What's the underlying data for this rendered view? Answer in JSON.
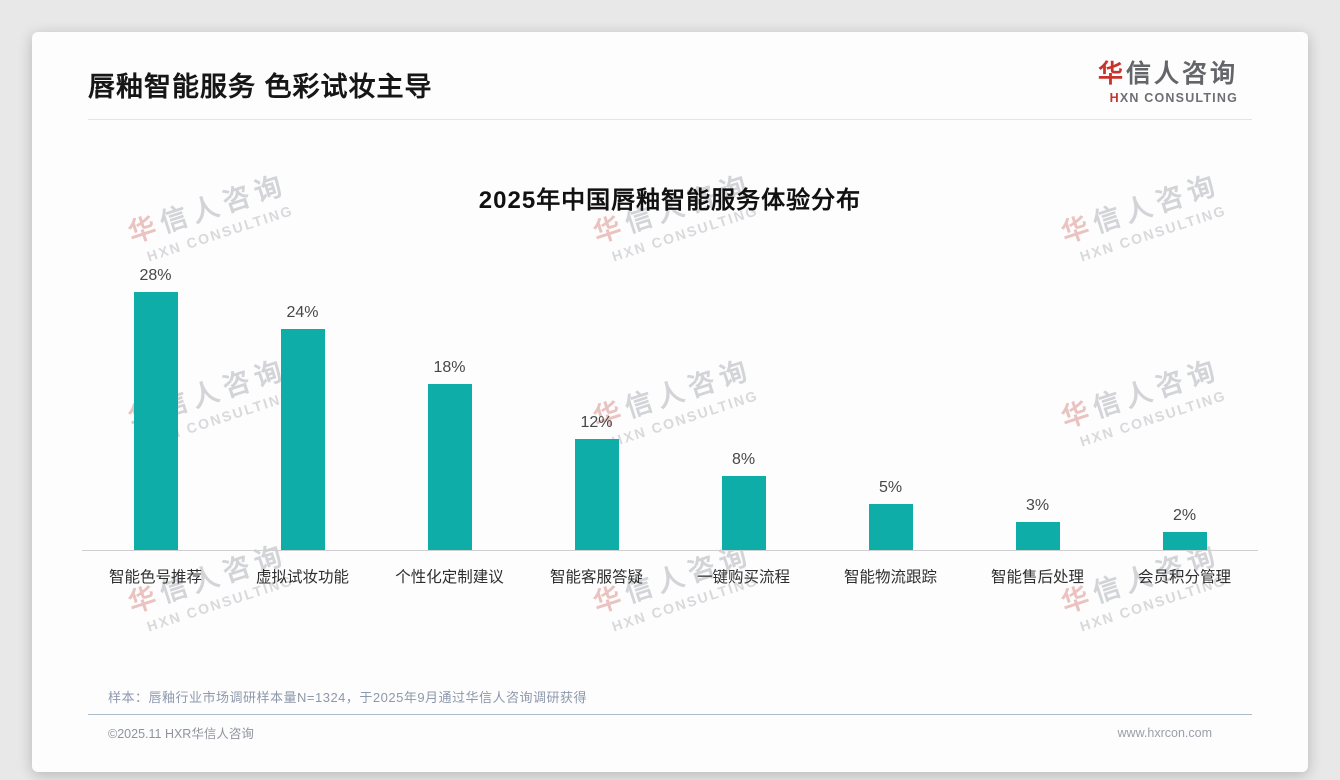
{
  "page": {
    "title": "唇釉智能服务 色彩试妆主导"
  },
  "logo": {
    "zh_first": "华",
    "zh_rest": "信人咨询",
    "en_first": "H",
    "en_rest": "XN CONSULTING",
    "accent_color": "#c8342c"
  },
  "watermark": {
    "zh_first": "华",
    "zh_rest": "信人咨询",
    "en": "HXN CONSULTING"
  },
  "chart_data": {
    "type": "bar",
    "title": "2025年中国唇釉智能服务体验分布",
    "categories": [
      "智能色号推荐",
      "虚拟试妆功能",
      "个性化定制建议",
      "智能客服答疑",
      "一键购买流程",
      "智能物流跟踪",
      "智能售后处理",
      "会员积分管理"
    ],
    "values": [
      28,
      24,
      18,
      12,
      8,
      5,
      3,
      2
    ],
    "unit": "%",
    "bar_color": "#0fada7",
    "ylim": [
      0,
      30
    ],
    "grid": false,
    "legend": "none",
    "value_labels_shown": true
  },
  "footer": {
    "sample_note": "样本：唇釉行业市场调研样本量N=1324，于2025年9月通过华信人咨询调研获得",
    "copyright": "©2025.11 HXR华信人咨询",
    "website": "www.hxrcon.com"
  }
}
